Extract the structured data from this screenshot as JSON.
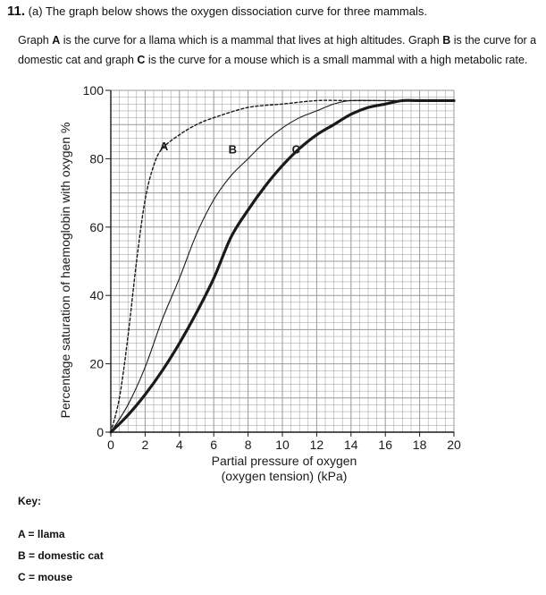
{
  "question": {
    "number": "11.",
    "part": "(a)",
    "text": "The graph below shows the oxygen dissociation curve for three mammals."
  },
  "intro": {
    "s1a": "Graph ",
    "s1b": "A",
    "s1c": " is the curve for a llama which is a mammal that lives at high altitudes. Graph ",
    "s1d": "B",
    "s1e": " is the curve for a domestic cat and graph ",
    "s1f": "C",
    "s1g": " is the curve for a mouse which is a small mammal with a high metabolic rate."
  },
  "key": {
    "title": "Key:",
    "items": [
      "A = llama",
      "B = domestic cat",
      "C = mouse"
    ]
  },
  "chart_data": {
    "type": "line",
    "title": "",
    "xlabel": "Partial pressure of oxygen",
    "xlabel2": "(oxygen tension) (kPa)",
    "ylabel": "Percentage saturation of haemoglobin with oxygen %",
    "xlim": [
      0,
      20
    ],
    "ylim": [
      0,
      100
    ],
    "xticks": [
      0,
      2,
      4,
      6,
      8,
      10,
      12,
      14,
      16,
      18,
      20
    ],
    "yticks": [
      0,
      20,
      40,
      60,
      80,
      100
    ],
    "grid": true,
    "series": [
      {
        "name": "A",
        "style": "dashed",
        "x": [
          0,
          0.5,
          1,
          1.5,
          2,
          2.5,
          3,
          4,
          5,
          6,
          8,
          10,
          12,
          14,
          16,
          18,
          20
        ],
        "y": [
          0,
          10,
          28,
          50,
          68,
          78,
          83,
          87,
          90,
          92,
          95,
          96,
          97,
          97,
          97,
          97,
          97
        ]
      },
      {
        "name": "B",
        "style": "thin",
        "x": [
          0,
          1,
          2,
          3,
          4,
          5,
          6,
          7,
          8,
          9,
          10,
          11,
          12,
          13,
          14,
          16,
          18,
          20
        ],
        "y": [
          0,
          8,
          19,
          33,
          45,
          58,
          68,
          75,
          80,
          85,
          89,
          92,
          94,
          96,
          97,
          97,
          97,
          97
        ]
      },
      {
        "name": "C",
        "style": "thick",
        "x": [
          0,
          1,
          2,
          3,
          4,
          5,
          6,
          7,
          8,
          9,
          10,
          11,
          12,
          13,
          14,
          15,
          16,
          17,
          18,
          20
        ],
        "y": [
          0,
          5,
          11,
          18,
          26,
          35,
          45,
          57,
          65,
          72,
          78,
          83,
          87,
          90,
          93,
          95,
          96,
          97,
          97,
          97
        ]
      }
    ]
  },
  "colors": {
    "line": "#1a1a1a",
    "grid": "#9a9a9a"
  }
}
